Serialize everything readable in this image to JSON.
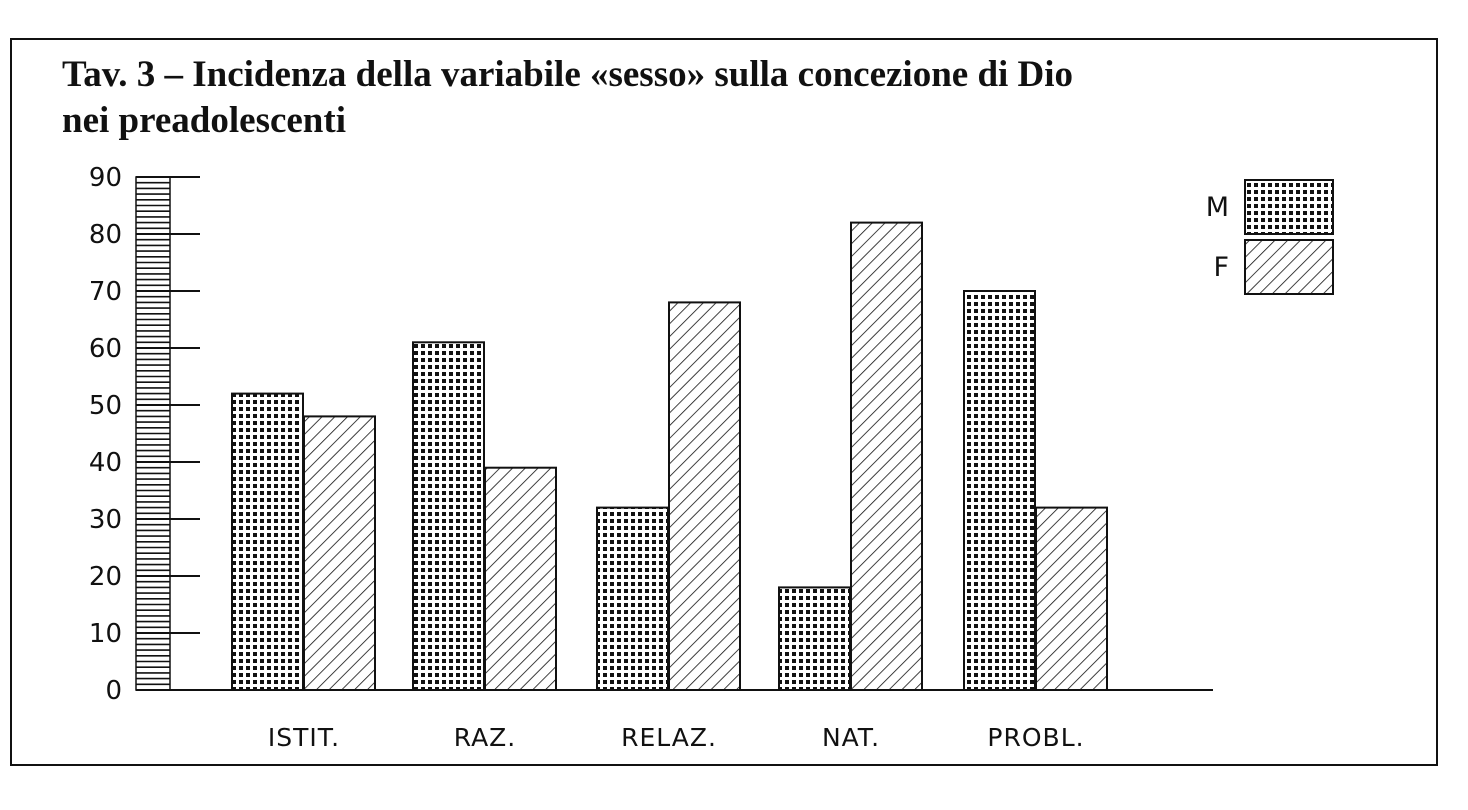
{
  "chart_data": {
    "type": "bar",
    "title": "Tav. 3 – Incidenza della variabile «sesso» sulla concezione di Dio",
    "subtitle": "nei preadolescenti",
    "categories": [
      "ISTIT.",
      "RAZ.",
      "RELAZ.",
      "NAT.",
      "PROBL."
    ],
    "series": [
      {
        "name": "M",
        "values": [
          52,
          61,
          32,
          18,
          70
        ],
        "pattern": "dots"
      },
      {
        "name": "F",
        "values": [
          48,
          39,
          68,
          82,
          32
        ],
        "pattern": "hatch"
      }
    ],
    "ylim": [
      0,
      90
    ],
    "yticks": [
      0,
      10,
      20,
      30,
      40,
      50,
      60,
      70,
      80,
      90
    ],
    "legend_position": "top-right",
    "grid": false,
    "colors": {
      "ink": "#111111",
      "background": "#ffffff"
    }
  }
}
